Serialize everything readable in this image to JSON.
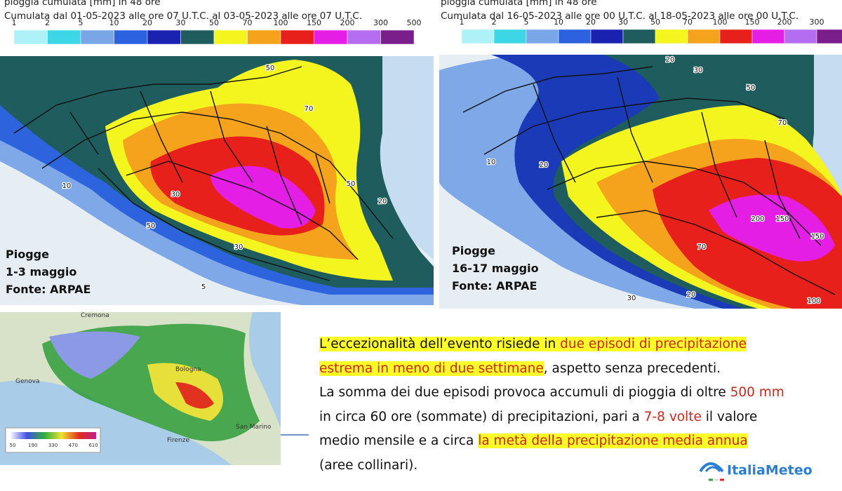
{
  "left_map": {
    "title": "pioggia cumulata [mm] in 48 ore",
    "subtitle": "Cumulata dal 01-05-2023 alle ore 07 U.T.C. al 03-05-2023 alle ore 07 U.T.C.",
    "scale_labels": [
      "1",
      "2",
      "5",
      "10",
      "20",
      "30",
      "50",
      "70",
      "100",
      "150",
      "200",
      "300",
      "500"
    ],
    "scale_colors": [
      "#aef2f7",
      "#3cd6e6",
      "#78a6e6",
      "#2c62e0",
      "#1a22b0",
      "#1e5c5e",
      "#f4f41e",
      "#f5a21c",
      "#e8201c",
      "#e41ee4",
      "#b46cf0",
      "#7a1e8c"
    ],
    "contour_labels": [
      "50",
      "70",
      "30",
      "50",
      "10",
      "5",
      "30",
      "50",
      "20"
    ],
    "caption": [
      "Piogge",
      "1-3 maggio",
      "Fonte: ARPAE"
    ]
  },
  "right_map": {
    "title": "pioggia cumulata [mm] in 48 ore",
    "subtitle": "Cumulata dal 16-05-2023 alle ore 00 U.T.C. al 18-05-2023 alle ore 00 U.T.C.",
    "scale_labels": [
      "1",
      "2",
      "5",
      "10",
      "20",
      "30",
      "50",
      "70",
      "100",
      "150",
      "200",
      "300"
    ],
    "scale_colors": [
      "#aef2f7",
      "#3cd6e6",
      "#78a6e6",
      "#2c62e0",
      "#1a22b0",
      "#1e5c5e",
      "#f4f41e",
      "#f5a21c",
      "#e8201c",
      "#e41ee4",
      "#b46cf0",
      "#7a1e8c"
    ],
    "contour_labels": [
      "20",
      "30",
      "50",
      "70",
      "20",
      "10",
      "200",
      "150",
      "150",
      "70",
      "100",
      "30",
      "20"
    ],
    "caption": [
      "Piogge",
      "16-17 maggio",
      "Fonte: ARPAE"
    ]
  },
  "total_map": {
    "places": [
      "Cremona",
      "Genova",
      "Bologna",
      "Firenze",
      "San Marino"
    ],
    "legend_labels": [
      "50",
      "190",
      "330",
      "470",
      "610"
    ]
  },
  "text_block": {
    "lines": [
      [
        {
          "text": "L’eccezionalità dell’evento risiede in ",
          "highlight": true,
          "red": false
        },
        {
          "text": "due episodi di precipitazione",
          "highlight": true,
          "red": true
        }
      ],
      [
        {
          "text": "estrema in meno di due settimane",
          "highlight": true,
          "red": true
        },
        {
          "text": ", aspetto senza precedenti.",
          "highlight": false,
          "red": false
        }
      ],
      [
        {
          "text": "La somma dei due episodi provoca accumuli di pioggia di oltre ",
          "highlight": false,
          "red": false
        },
        {
          "text": "500 mm",
          "highlight": false,
          "red": true
        }
      ],
      [
        {
          "text": "in circa 60 ore (sommate) di precipitazioni, pari a ",
          "highlight": false,
          "red": false
        },
        {
          "text": "7-8 volte",
          "highlight": false,
          "red": true
        },
        {
          "text": " il valore",
          "highlight": false,
          "red": false
        }
      ],
      [
        {
          "text": "medio mensile e a circa ",
          "highlight": false,
          "red": false
        },
        {
          "text": "la metà della precipitazione media annua",
          "highlight": true,
          "red": true
        }
      ],
      [
        {
          "text": "(aree collinari).",
          "highlight": false,
          "red": false
        }
      ]
    ]
  },
  "logo": {
    "text": "ItaliaMeteo"
  }
}
